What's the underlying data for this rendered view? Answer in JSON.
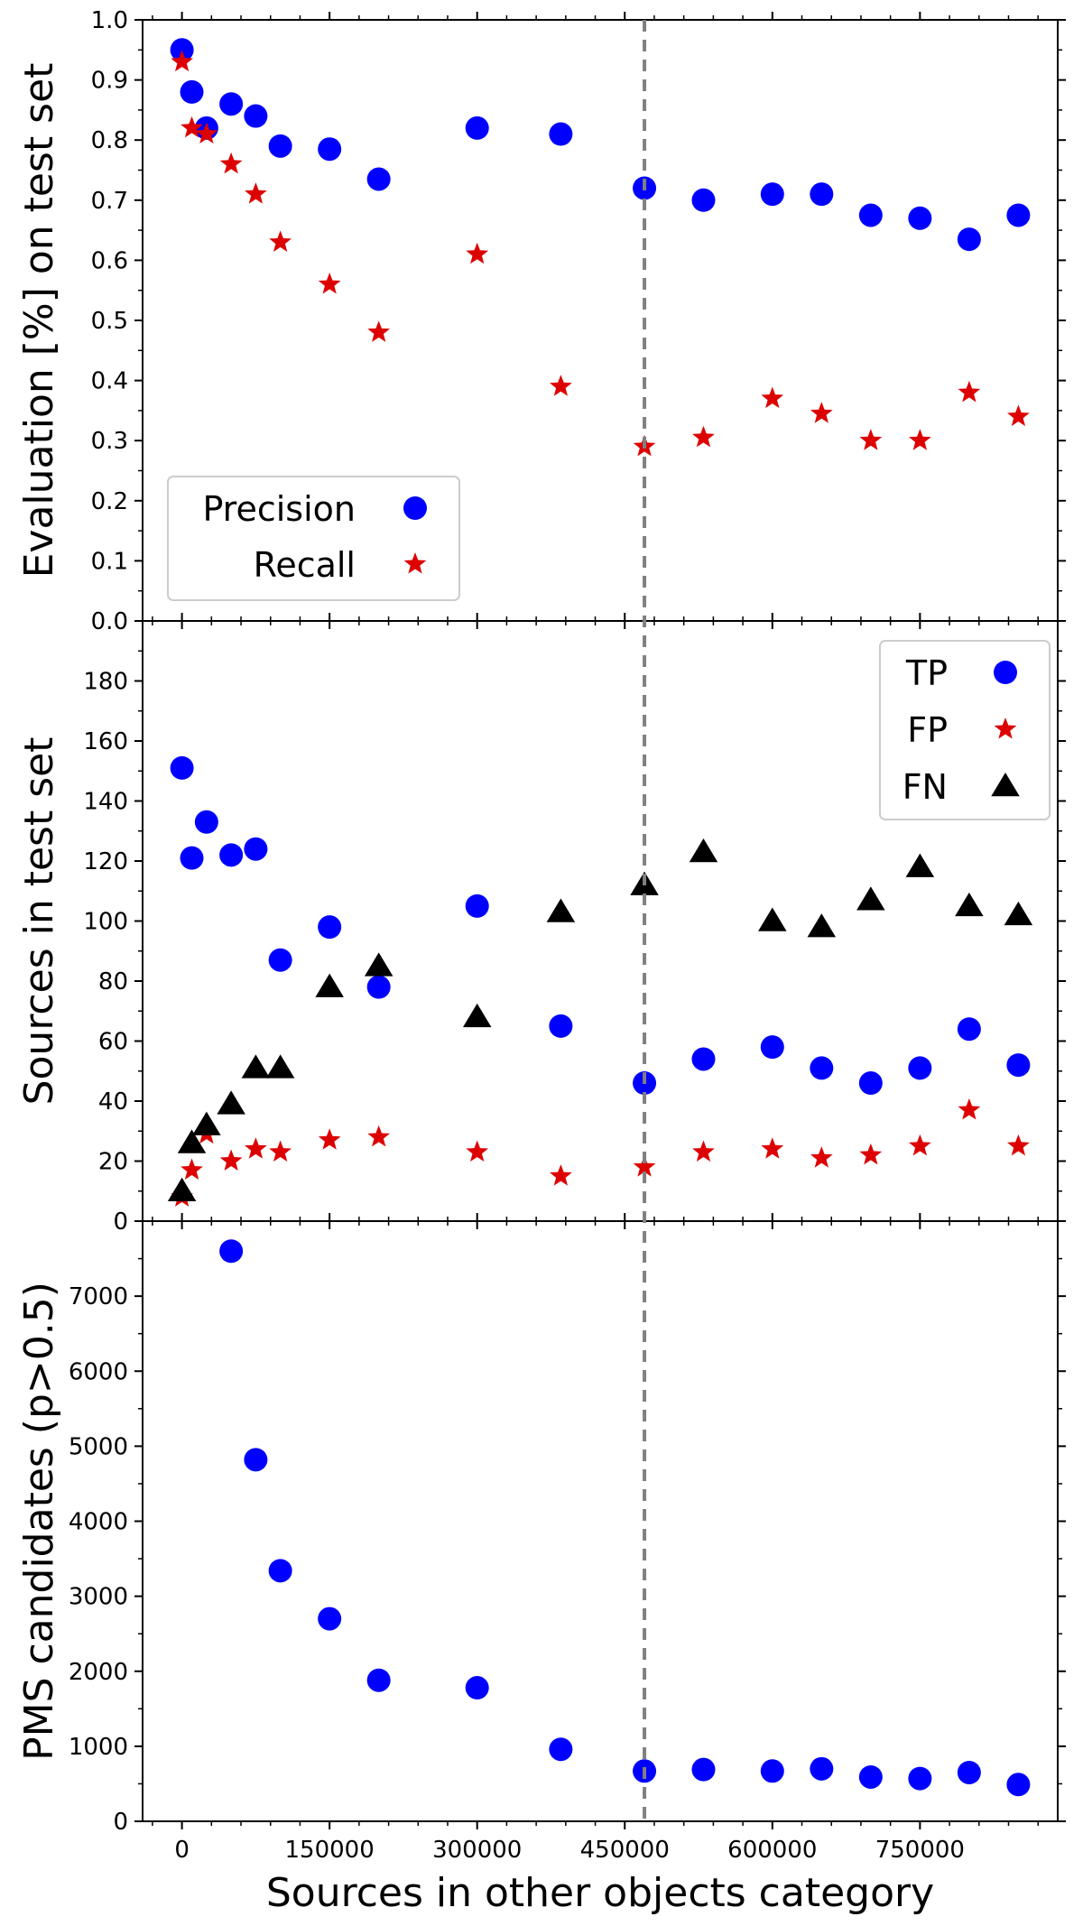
{
  "colors": {
    "blue": "#0000ff",
    "red": "#dd0000",
    "black": "#000000",
    "vline": "#808080"
  },
  "chart_data": [
    {
      "type": "scatter",
      "panel": "top",
      "ylabel": "Evaluation [%] on test set",
      "ylim": [
        0,
        1.0
      ],
      "yticks": [
        "0.0",
        "0.1",
        "0.2",
        "0.3",
        "0.4",
        "0.5",
        "0.6",
        "0.7",
        "0.8",
        "0.9",
        "1.0"
      ],
      "ytick_values": [
        0,
        0.1,
        0.2,
        0.3,
        0.4,
        0.5,
        0.6,
        0.7,
        0.8,
        0.9,
        1.0
      ],
      "legend_position": "lower-left",
      "x": [
        0,
        10000,
        25000,
        50000,
        75000,
        100000,
        150000,
        200000,
        300000,
        385000,
        470000,
        530000,
        600000,
        650000,
        700000,
        750000,
        800000,
        850000
      ],
      "series": [
        {
          "name": "Precision",
          "marker": "circle",
          "color": "blue",
          "values": [
            0.95,
            0.88,
            0.82,
            0.86,
            0.84,
            0.79,
            0.785,
            0.735,
            0.82,
            0.81,
            0.72,
            0.7,
            0.71,
            0.71,
            0.675,
            0.67,
            0.635,
            0.675
          ]
        },
        {
          "name": "Recall",
          "marker": "star",
          "color": "red",
          "values": [
            0.93,
            0.82,
            0.81,
            0.76,
            0.71,
            0.63,
            0.56,
            0.48,
            0.61,
            0.39,
            0.29,
            0.305,
            0.37,
            0.345,
            0.3,
            0.3,
            0.38,
            0.34
          ]
        }
      ]
    },
    {
      "type": "scatter",
      "panel": "middle",
      "ylabel": "Sources in test set",
      "ylim": [
        0,
        200
      ],
      "yticks": [
        "0",
        "20",
        "40",
        "60",
        "80",
        "100",
        "120",
        "140",
        "160",
        "180"
      ],
      "ytick_values": [
        0,
        20,
        40,
        60,
        80,
        100,
        120,
        140,
        160,
        180
      ],
      "legend_position": "upper-right",
      "x": [
        0,
        10000,
        25000,
        50000,
        75000,
        100000,
        150000,
        200000,
        300000,
        385000,
        470000,
        530000,
        600000,
        650000,
        700000,
        750000,
        800000,
        850000
      ],
      "series": [
        {
          "name": "TP",
          "marker": "circle",
          "color": "blue",
          "values": [
            151,
            121,
            133,
            122,
            124,
            87,
            98,
            78,
            105,
            65,
            46,
            54,
            58,
            51,
            46,
            51,
            64,
            52
          ]
        },
        {
          "name": "FP",
          "marker": "star",
          "color": "red",
          "values": [
            8,
            17,
            29,
            20,
            24,
            23,
            27,
            28,
            23,
            15,
            18,
            23,
            24,
            21,
            22,
            25,
            37,
            25
          ]
        },
        {
          "name": "FN",
          "marker": "triangle",
          "color": "black",
          "values": [
            10,
            26,
            32,
            39,
            51,
            51,
            78,
            85,
            68,
            103,
            112,
            123,
            100,
            98,
            107,
            118,
            105,
            102
          ]
        }
      ]
    },
    {
      "type": "scatter",
      "panel": "bottom",
      "ylabel": "PMS candidates (p>0.5)",
      "ylim": [
        0,
        8000
      ],
      "yticks": [
        "0",
        "1000",
        "2000",
        "3000",
        "4000",
        "5000",
        "6000",
        "7000"
      ],
      "ytick_values": [
        0,
        1000,
        2000,
        3000,
        4000,
        5000,
        6000,
        7000
      ],
      "x": [
        50000,
        75000,
        100000,
        150000,
        200000,
        300000,
        385000,
        470000,
        530000,
        600000,
        650000,
        700000,
        750000,
        800000,
        850000
      ],
      "series": [
        {
          "name": "PMS candidates",
          "marker": "circle",
          "color": "blue",
          "values": [
            7600,
            4820,
            3340,
            2700,
            1880,
            1780,
            960,
            670,
            690,
            670,
            700,
            590,
            570,
            650,
            490
          ]
        }
      ]
    }
  ],
  "xaxis": {
    "xlabel": "Sources in other objects category",
    "xlim": [
      -40000,
      890000
    ],
    "xticks": [
      "0",
      "150000",
      "300000",
      "450000",
      "600000",
      "750000"
    ],
    "xtick_values": [
      0,
      150000,
      300000,
      450000,
      600000,
      750000
    ],
    "vline_x": 470000
  }
}
